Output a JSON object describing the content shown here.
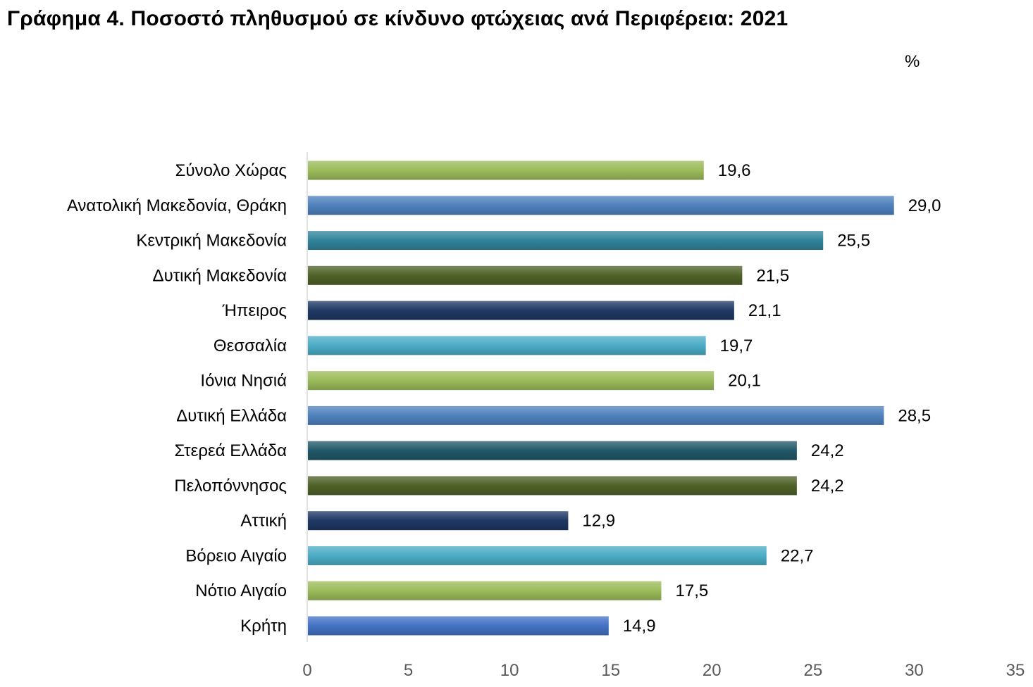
{
  "title": "Γράφημα 4. Ποσοστό πληθυσμού σε κίνδυνο φτώχειας ανά Περιφέρεια: 2021",
  "unit": "%",
  "colors": {
    "light_green": "#9BBB59",
    "blue": "#4F81BD",
    "teal": "#31849B",
    "olive": "#4F6228",
    "navy": "#1F3864",
    "light_blue": "#4BACC6",
    "axis": "#D9D9D9"
  },
  "chart_data": {
    "type": "bar",
    "orientation": "horizontal",
    "title": "Γράφημα 4. Ποσοστό πληθυσμού σε κίνδυνο φτώχειας ανά Περιφέρεια: 2021",
    "categories": [
      "Σύνολο Χώρας",
      "Ανατολική Μακεδονία, Θράκη",
      "Κεντρική Μακεδονία",
      "Δυτική Μακεδονία",
      "Ήπειρος",
      "Θεσσαλία",
      "Ιόνια Νησιά",
      "Δυτική Ελλάδα",
      "Στερεά Ελλάδα",
      "Πελοπόννησος",
      "Αττική",
      "Βόρειο Αιγαίο",
      "Νότιο Αιγαίο",
      "Κρήτη"
    ],
    "values": [
      19.6,
      29.0,
      25.5,
      21.5,
      21.1,
      19.7,
      20.1,
      28.5,
      24.2,
      24.2,
      12.9,
      22.7,
      17.5,
      14.9
    ],
    "value_labels": [
      "19,6",
      "29,0",
      "25,5",
      "21,5",
      "21,1",
      "19,7",
      "20,1",
      "28,5",
      "24,2",
      "24,2",
      "12,9",
      "22,7",
      "17,5",
      "14,9"
    ],
    "bar_colors": [
      "#9BBB59",
      "#4F81BD",
      "#31849B",
      "#4F6228",
      "#1F3864",
      "#4BACC6",
      "#9BBB59",
      "#4F81BD",
      "#215868",
      "#4F6228",
      "#1F3864",
      "#4BACC6",
      "#9BBB59",
      "#4472C4"
    ],
    "xlim": [
      0,
      35
    ],
    "xticks": [
      0,
      5,
      10,
      15,
      20,
      25,
      30,
      35
    ],
    "xlabel": "",
    "ylabel": "",
    "grid": false,
    "legend": "none"
  }
}
